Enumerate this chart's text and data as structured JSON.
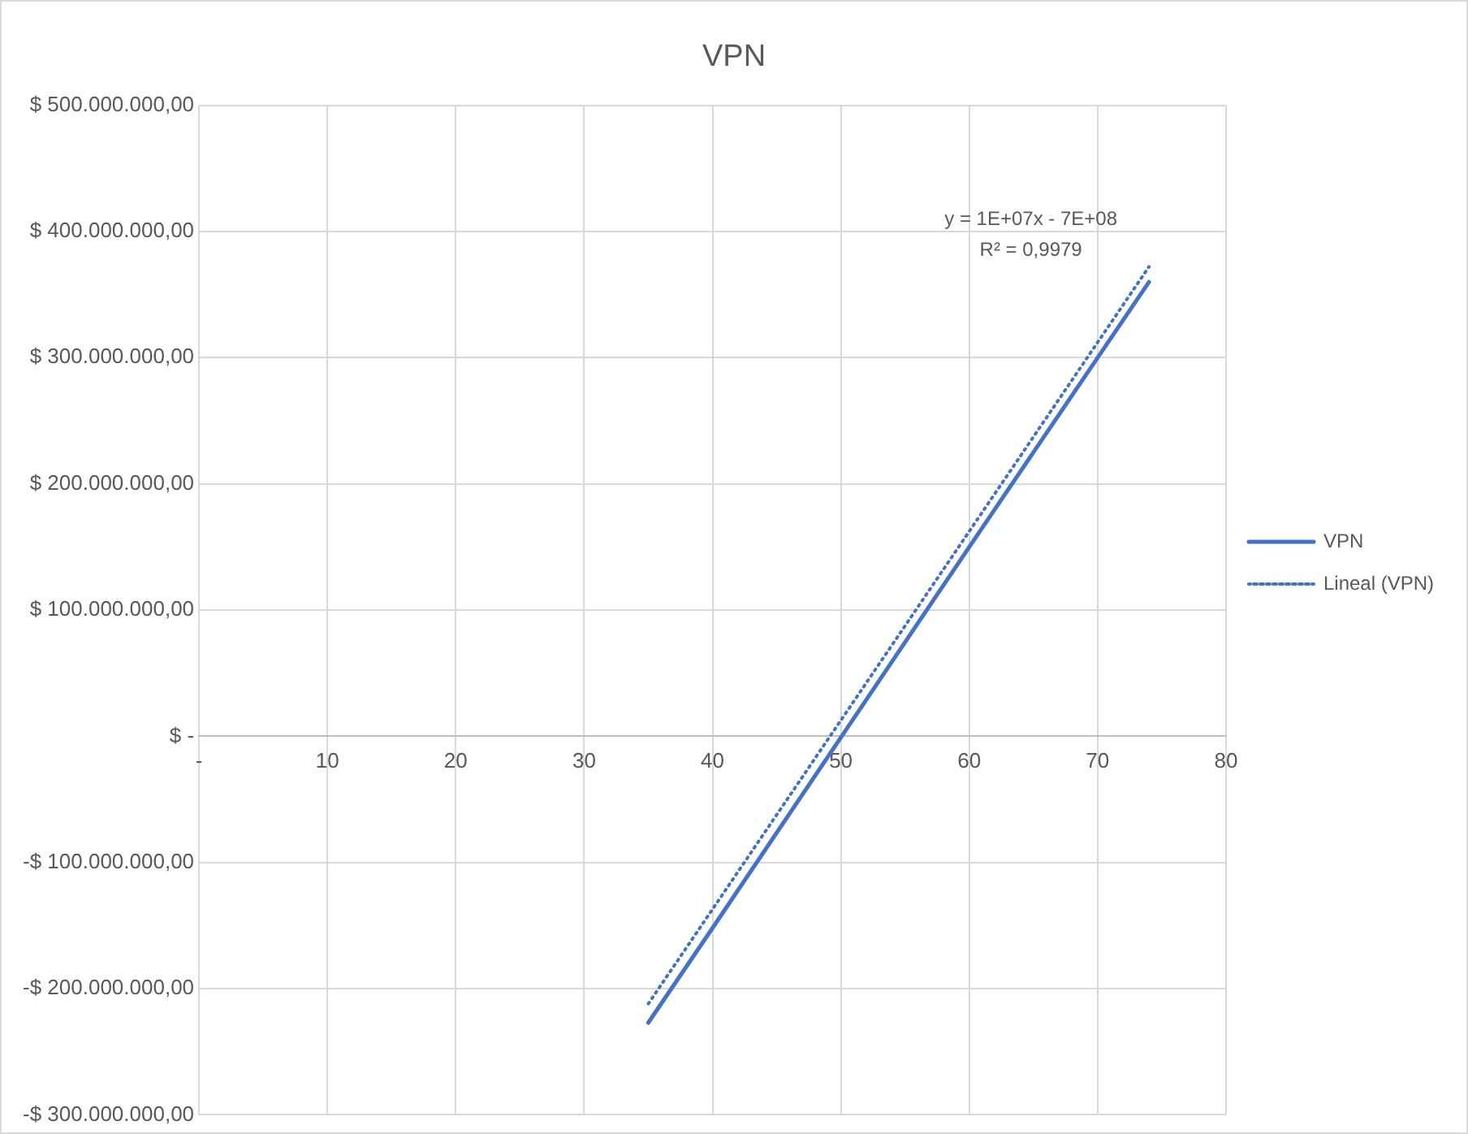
{
  "chart_data": {
    "type": "line",
    "title": "VPN",
    "series": [
      {
        "name": "VPN",
        "color": "#4472c4",
        "x": [
          35,
          40,
          50,
          60,
          70,
          74
        ],
        "values": [
          -227000000,
          -152000000,
          -1000000,
          150000000,
          300000000,
          360000000
        ],
        "line_style": "solid"
      },
      {
        "name": "Lineal (VPN)",
        "color": "#4472c4",
        "x": [
          35,
          74
        ],
        "values": [
          -212000000,
          372000000
        ],
        "line_style": "dotted"
      }
    ],
    "xlim": [
      0,
      80
    ],
    "xticks": [
      {
        "value": 0,
        "label": "-"
      },
      10,
      20,
      30,
      40,
      50,
      60,
      70,
      80
    ],
    "ylim": [
      -300000000,
      500000000
    ],
    "yticks": [
      {
        "value": -300000000,
        "label": "-$ 300.000.000,00"
      },
      {
        "value": -200000000,
        "label": "-$ 200.000.000,00"
      },
      {
        "value": -100000000,
        "label": "-$ 100.000.000,00"
      },
      {
        "value": 0,
        "label": "$ -"
      },
      {
        "value": 100000000,
        "label": "$ 100.000.000,00"
      },
      {
        "value": 200000000,
        "label": "$ 200.000.000,00"
      },
      {
        "value": 300000000,
        "label": "$ 300.000.000,00"
      },
      {
        "value": 400000000,
        "label": "$ 400.000.000,00"
      },
      {
        "value": 500000000,
        "label": "$ 500.000.000,00"
      }
    ],
    "annotations": [
      "y = 1E+07x - 7E+08",
      "R² = 0,9979"
    ],
    "grid": true,
    "legend": "right",
    "marker": "none"
  }
}
